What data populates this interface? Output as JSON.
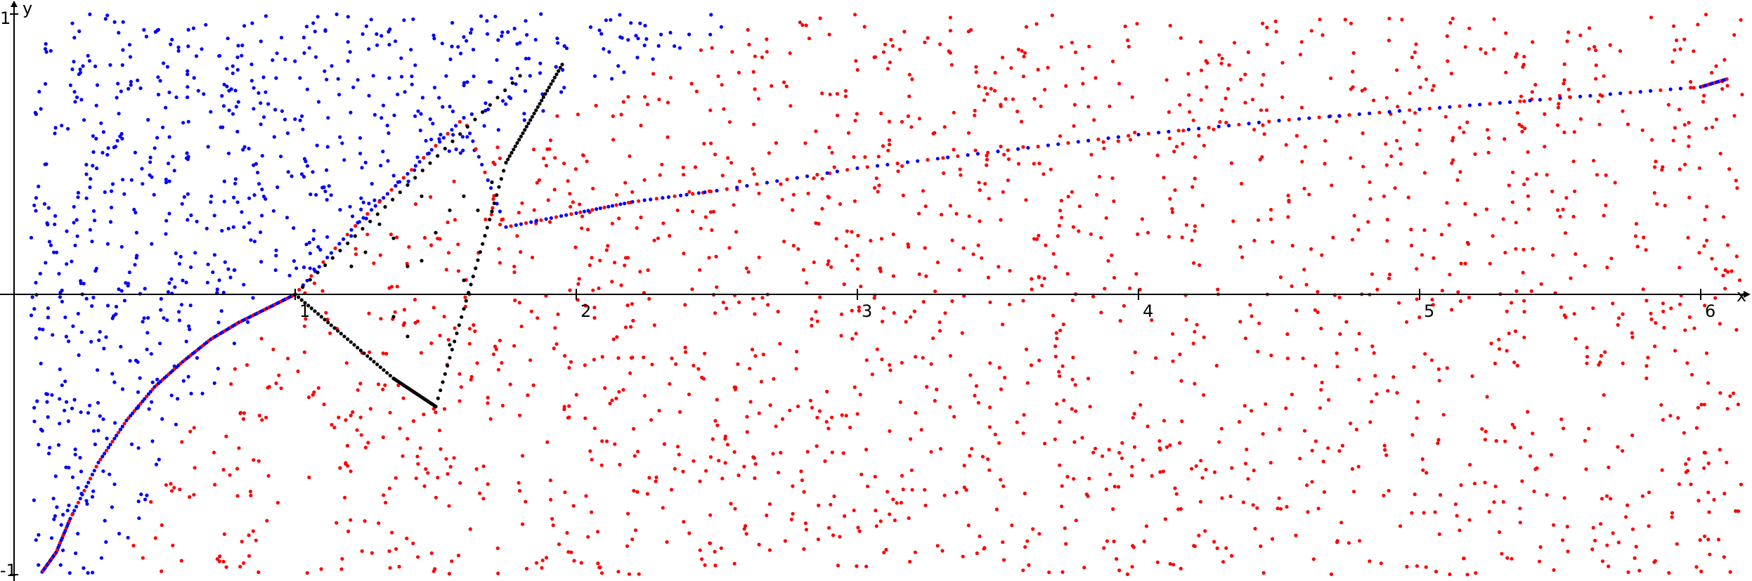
{
  "chart_data": {
    "type": "scatter",
    "title": "",
    "xlabel": "x",
    "ylabel": "y",
    "xlim": [
      -0.05,
      6.15
    ],
    "ylim": [
      -1.01,
      1.03
    ],
    "grid": false,
    "legend": "none",
    "x_ticks": [
      {
        "value": 1,
        "label": "1"
      },
      {
        "value": 2,
        "label": "2"
      },
      {
        "value": 3,
        "label": "3"
      },
      {
        "value": 4,
        "label": "4"
      },
      {
        "value": 5,
        "label": "5"
      },
      {
        "value": 6,
        "label": "6"
      }
    ],
    "y_ticks": [
      {
        "value": 1,
        "label": "1"
      },
      {
        "value": -1,
        "label": "-1"
      }
    ],
    "colors": {
      "above_curve": "#0000ff",
      "below_curve": "#ff0000",
      "construction": "#000000",
      "axes": "#000000"
    },
    "series": [
      {
        "color": "#0000ff",
        "role": "random points above the curve y = ln(x)",
        "region": {
          "x": [
            -0.05,
            6.15
          ],
          "y_from": "curve",
          "y_to": 1.0
        },
        "approx_count": 750
      },
      {
        "color": "#ff0000",
        "role": "random points below the curve y = ln(x)",
        "region": {
          "x": [
            -0.05,
            6.15
          ],
          "y_from": -1.0,
          "y_to": "curve"
        },
        "approx_count": 1900
      },
      {
        "color": "#0000ff",
        "role": "points lying on the curve",
        "x": [
          0.1,
          0.15,
          0.2,
          0.3,
          0.4,
          0.5,
          0.6,
          0.7,
          0.8,
          0.9,
          1.0,
          1.2,
          1.4,
          1.6,
          1.75,
          2.0,
          2.2,
          2.5,
          3.0,
          3.5,
          4.0,
          4.5,
          5.0,
          5.5,
          6.0,
          6.1
        ],
        "y": [
          -0.99,
          -0.92,
          -0.8,
          -0.6,
          -0.45,
          -0.33,
          -0.24,
          -0.16,
          -0.1,
          -0.05,
          0.0,
          0.23,
          0.43,
          0.63,
          0.24,
          0.29,
          0.33,
          0.37,
          0.45,
          0.51,
          0.57,
          0.62,
          0.66,
          0.7,
          0.74,
          0.77
        ]
      },
      {
        "color": "#000000",
        "role": "construction points",
        "segments": [
          {
            "from": [
              1.0,
              0.0
            ],
            "to": [
              1.8,
              0.78
            ]
          },
          {
            "from": [
              1.0,
              0.0
            ],
            "to": [
              1.35,
              -0.3
            ]
          },
          {
            "from": [
              1.35,
              -0.3
            ],
            "to": [
              1.5,
              -0.4
            ]
          },
          {
            "from": [
              1.5,
              -0.4
            ],
            "to": [
              1.75,
              0.47
            ]
          },
          {
            "from": [
              1.75,
              0.47
            ],
            "to": [
              1.95,
              0.82
            ]
          }
        ],
        "scatter": [
          [
            1.2,
            0.1
          ],
          [
            1.25,
            0.15
          ],
          [
            1.3,
            0.25
          ],
          [
            1.35,
            0.2
          ],
          [
            1.4,
            0.1
          ],
          [
            1.45,
            0.12
          ],
          [
            1.5,
            0.22
          ],
          [
            1.55,
            0.3
          ],
          [
            1.6,
            0.35
          ],
          [
            1.65,
            0.3
          ],
          [
            1.7,
            0.4
          ],
          [
            1.35,
            -0.08
          ],
          [
            1.4,
            -0.15
          ],
          [
            1.55,
            -0.18
          ],
          [
            1.6,
            0.05
          ],
          [
            1.45,
            0.35
          ]
        ]
      }
    ]
  }
}
